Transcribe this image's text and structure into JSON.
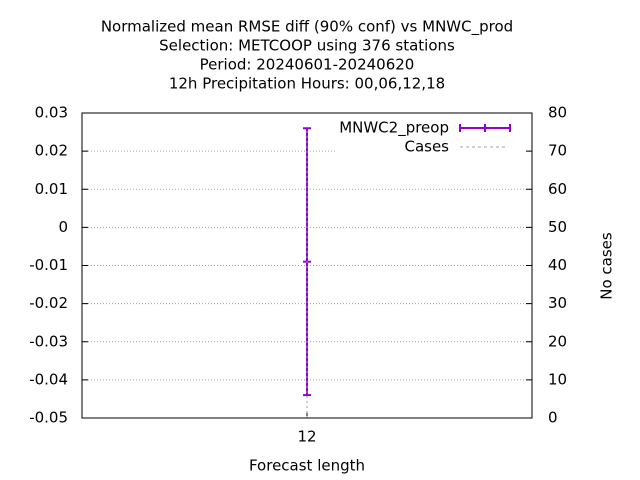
{
  "chart_data": {
    "type": "errorbar",
    "title_lines": [
      "Normalized mean RMSE diff (90% conf) vs MNWC_prod",
      "Selection: METCOOP using   376 stations",
      "Period: 20240601-20240620",
      "12h Precipitation    Hours:  00,06,12,18"
    ],
    "xlabel": "Forecast length",
    "y2label": "No cases",
    "categories": [
      "12"
    ],
    "series": [
      {
        "name": "MNWC2_preop",
        "color": "#9400d3",
        "values": [
          -0.009
        ],
        "low": [
          -0.044
        ],
        "high": [
          0.026
        ]
      },
      {
        "name": "Cases",
        "color": "#a0a0a0",
        "values": [
          76
        ],
        "axis": "y2"
      }
    ],
    "ylim": [
      -0.05,
      0.03
    ],
    "yticks": [
      -0.05,
      -0.04,
      -0.03,
      -0.02,
      -0.01,
      0,
      0.01,
      0.02,
      0.03
    ],
    "y2lim": [
      0,
      80
    ],
    "y2ticks": [
      0,
      10,
      20,
      30,
      40,
      50,
      60,
      70,
      80
    ],
    "grid": true,
    "legend": "top-right"
  }
}
